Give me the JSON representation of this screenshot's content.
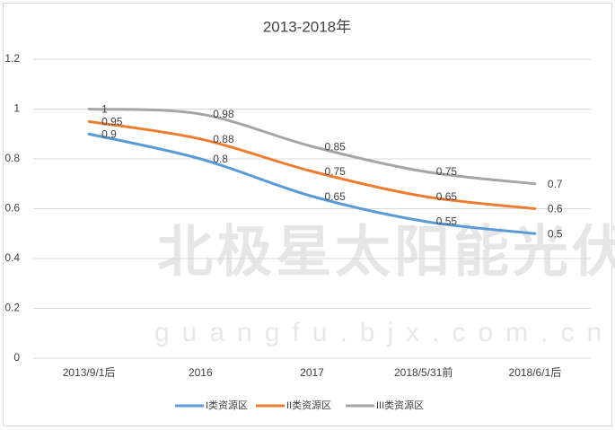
{
  "chart_data": {
    "type": "line",
    "title": "2013-2018年",
    "categories": [
      "2013/9/1后",
      "2016",
      "2017",
      "2018/5/31前",
      "2018/6/1后"
    ],
    "series": [
      {
        "name": "I类资源区",
        "color": "#5b9bd5",
        "values": [
          0.9,
          0.8,
          0.65,
          0.55,
          0.5
        ]
      },
      {
        "name": "II类资源区",
        "color": "#ed7d31",
        "values": [
          0.95,
          0.88,
          0.75,
          0.65,
          0.6
        ]
      },
      {
        "name": "III类资源区",
        "color": "#a5a5a5",
        "values": [
          1,
          0.98,
          0.85,
          0.75,
          0.7
        ]
      }
    ],
    "ylim": [
      0,
      1.2
    ],
    "yticks": [
      0,
      0.2,
      0.4,
      0.6,
      0.8,
      1,
      1.2
    ],
    "grid": true,
    "legend": "bottom",
    "watermark": {
      "name": "北极星太阳能光伏网",
      "url": "guangfu.bjx.com.cn"
    }
  }
}
